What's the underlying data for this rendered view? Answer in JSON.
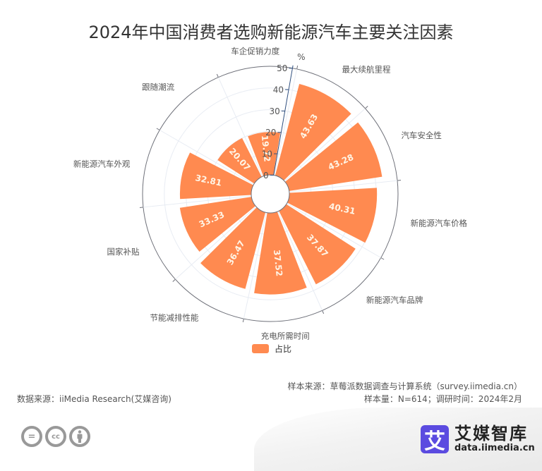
{
  "title": "2024年中国消费者选购新能源汽车主要关注因素",
  "legend": {
    "label": "占比",
    "color": "#FF8A50"
  },
  "source": {
    "data_source": "数据来源：iiMedia Research(艾媒咨询)",
    "sample_source": "样本来源：草莓派数据调查与计算系统（survey.iimedia.cn）",
    "sample_info": "样本量：N=614；调研时间：2024年2月"
  },
  "brand": {
    "logo_char": "艾",
    "name": "艾媒智库",
    "url": "data.iimedia.cn"
  },
  "license_icons": [
    "no-derivatives-icon",
    "cc-icon",
    "attribution-icon"
  ],
  "chart_data": {
    "type": "bar",
    "subtype": "polar",
    "title": "2024年中国消费者选购新能源汽车主要关注因素",
    "categories": [
      "车企促销力度",
      "最大续航里程",
      "汽车安全性",
      "新能源汽车价格",
      "新能源汽车品牌",
      "充电所需时间",
      "节能减排性能",
      "国家补贴",
      "新能源汽车外观",
      "跟随潮流"
    ],
    "series": [
      {
        "name": "占比",
        "values": [
          19.72,
          43.63,
          43.28,
          40.31,
          37.87,
          37.52,
          36.47,
          33.33,
          32.81,
          20.07
        ]
      }
    ],
    "radial_axis": {
      "unit": "%",
      "ticks": [
        0,
        10,
        20,
        30,
        40,
        50
      ],
      "range": [
        0,
        50
      ]
    },
    "colors": {
      "bar": "#FF8A50",
      "axis": "#6e7079",
      "grid": "#e8ecf3",
      "bar_label": "#fff5e6"
    },
    "legend_position": "bottom"
  }
}
